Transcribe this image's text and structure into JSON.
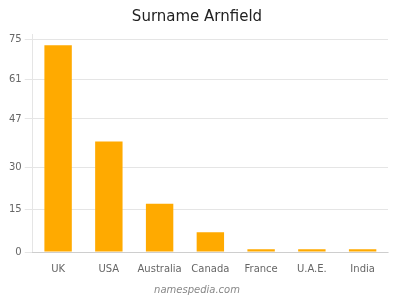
{
  "chart_data": {
    "type": "bar",
    "title": "Surname Arnfield",
    "categories": [
      "UK",
      "USA",
      "Australia",
      "Canada",
      "France",
      "U.A.E.",
      "India"
    ],
    "values": [
      73,
      39,
      17,
      7,
      1,
      1,
      1
    ],
    "color": "#FFAA00",
    "ylim": [
      0,
      77
    ],
    "yticks": [
      0,
      15,
      30,
      47,
      61,
      75
    ],
    "grid": true,
    "annotations": [
      "namespedia.com"
    ]
  }
}
